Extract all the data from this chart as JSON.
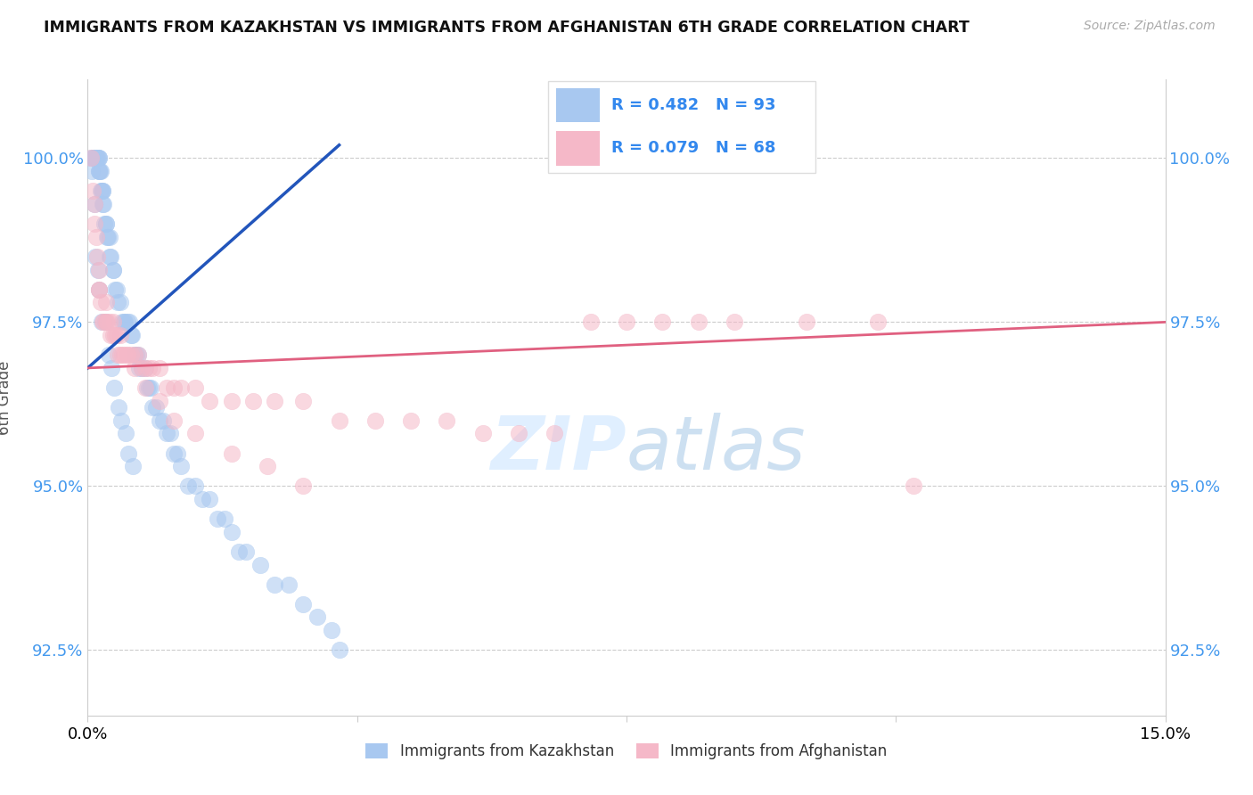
{
  "title": "IMMIGRANTS FROM KAZAKHSTAN VS IMMIGRANTS FROM AFGHANISTAN 6TH GRADE CORRELATION CHART",
  "source": "Source: ZipAtlas.com",
  "ylabel": "6th Grade",
  "xlim": [
    0.0,
    15.0
  ],
  "ylim": [
    91.5,
    101.2
  ],
  "yticks": [
    92.5,
    95.0,
    97.5,
    100.0
  ],
  "xticks": [
    0.0,
    3.75,
    7.5,
    11.25,
    15.0
  ],
  "xtick_labels": [
    "0.0%",
    "",
    "",
    "",
    "15.0%"
  ],
  "R_kaz": 0.482,
  "N_kaz": 93,
  "R_afg": 0.079,
  "N_afg": 68,
  "color_kaz": "#a8c8f0",
  "color_afg": "#f5b8c8",
  "line_color_kaz": "#2255bb",
  "line_color_afg": "#e06080",
  "legend_label_kaz": "Immigrants from Kazakhstan",
  "legend_label_afg": "Immigrants from Afghanistan",
  "kaz_x": [
    0.05,
    0.07,
    0.08,
    0.09,
    0.1,
    0.1,
    0.11,
    0.12,
    0.12,
    0.13,
    0.14,
    0.15,
    0.15,
    0.15,
    0.16,
    0.17,
    0.18,
    0.18,
    0.19,
    0.2,
    0.2,
    0.21,
    0.22,
    0.23,
    0.25,
    0.25,
    0.27,
    0.28,
    0.3,
    0.3,
    0.32,
    0.35,
    0.35,
    0.38,
    0.4,
    0.42,
    0.45,
    0.48,
    0.5,
    0.52,
    0.55,
    0.58,
    0.6,
    0.62,
    0.65,
    0.68,
    0.7,
    0.72,
    0.75,
    0.8,
    0.82,
    0.85,
    0.88,
    0.9,
    0.95,
    1.0,
    1.05,
    1.1,
    1.15,
    1.2,
    1.25,
    1.3,
    1.4,
    1.5,
    1.6,
    1.7,
    1.8,
    1.9,
    2.0,
    2.1,
    2.2,
    2.4,
    2.6,
    2.8,
    3.0,
    3.2,
    3.4,
    3.5,
    0.06,
    0.09,
    0.11,
    0.14,
    0.16,
    0.19,
    0.24,
    0.29,
    0.33,
    0.37,
    0.43,
    0.47,
    0.53,
    0.57,
    0.63
  ],
  "kaz_y": [
    100.0,
    100.0,
    100.0,
    100.0,
    100.0,
    100.0,
    100.0,
    100.0,
    100.0,
    100.0,
    100.0,
    100.0,
    100.0,
    99.8,
    99.8,
    99.8,
    99.8,
    99.5,
    99.5,
    99.5,
    99.5,
    99.3,
    99.3,
    99.0,
    99.0,
    99.0,
    98.8,
    98.8,
    98.8,
    98.5,
    98.5,
    98.3,
    98.3,
    98.0,
    98.0,
    97.8,
    97.8,
    97.5,
    97.5,
    97.5,
    97.5,
    97.5,
    97.3,
    97.3,
    97.0,
    97.0,
    97.0,
    96.8,
    96.8,
    96.8,
    96.5,
    96.5,
    96.5,
    96.2,
    96.2,
    96.0,
    96.0,
    95.8,
    95.8,
    95.5,
    95.5,
    95.3,
    95.0,
    95.0,
    94.8,
    94.8,
    94.5,
    94.5,
    94.3,
    94.0,
    94.0,
    93.8,
    93.5,
    93.5,
    93.2,
    93.0,
    92.8,
    92.5,
    99.8,
    99.3,
    98.5,
    98.3,
    98.0,
    97.5,
    97.5,
    97.0,
    96.8,
    96.5,
    96.2,
    96.0,
    95.8,
    95.5,
    95.3
  ],
  "afg_x": [
    0.05,
    0.07,
    0.09,
    0.1,
    0.12,
    0.13,
    0.15,
    0.16,
    0.18,
    0.2,
    0.22,
    0.25,
    0.27,
    0.3,
    0.32,
    0.35,
    0.38,
    0.4,
    0.42,
    0.45,
    0.48,
    0.5,
    0.55,
    0.6,
    0.65,
    0.7,
    0.75,
    0.8,
    0.85,
    0.9,
    1.0,
    1.1,
    1.2,
    1.3,
    1.5,
    1.7,
    2.0,
    2.3,
    2.6,
    3.0,
    3.5,
    4.0,
    4.5,
    5.0,
    5.5,
    6.0,
    6.5,
    7.0,
    7.5,
    8.0,
    8.5,
    9.0,
    10.0,
    11.0,
    11.5,
    0.15,
    0.25,
    0.35,
    0.45,
    0.55,
    0.65,
    0.8,
    1.0,
    1.2,
    1.5,
    2.0,
    2.5,
    3.0
  ],
  "afg_y": [
    100.0,
    99.5,
    99.3,
    99.0,
    98.8,
    98.5,
    98.3,
    98.0,
    97.8,
    97.5,
    97.5,
    97.5,
    97.5,
    97.5,
    97.3,
    97.3,
    97.3,
    97.3,
    97.0,
    97.0,
    97.0,
    97.0,
    97.0,
    97.0,
    97.0,
    97.0,
    96.8,
    96.8,
    96.8,
    96.8,
    96.8,
    96.5,
    96.5,
    96.5,
    96.5,
    96.3,
    96.3,
    96.3,
    96.3,
    96.3,
    96.0,
    96.0,
    96.0,
    96.0,
    95.8,
    95.8,
    95.8,
    97.5,
    97.5,
    97.5,
    97.5,
    97.5,
    97.5,
    97.5,
    95.0,
    98.0,
    97.8,
    97.5,
    97.3,
    97.0,
    96.8,
    96.5,
    96.3,
    96.0,
    95.8,
    95.5,
    95.3,
    95.0
  ],
  "kaz_line_x": [
    0.0,
    3.5
  ],
  "kaz_line_y": [
    96.8,
    100.2
  ],
  "afg_line_x": [
    0.0,
    15.0
  ],
  "afg_line_y": [
    96.8,
    97.5
  ]
}
